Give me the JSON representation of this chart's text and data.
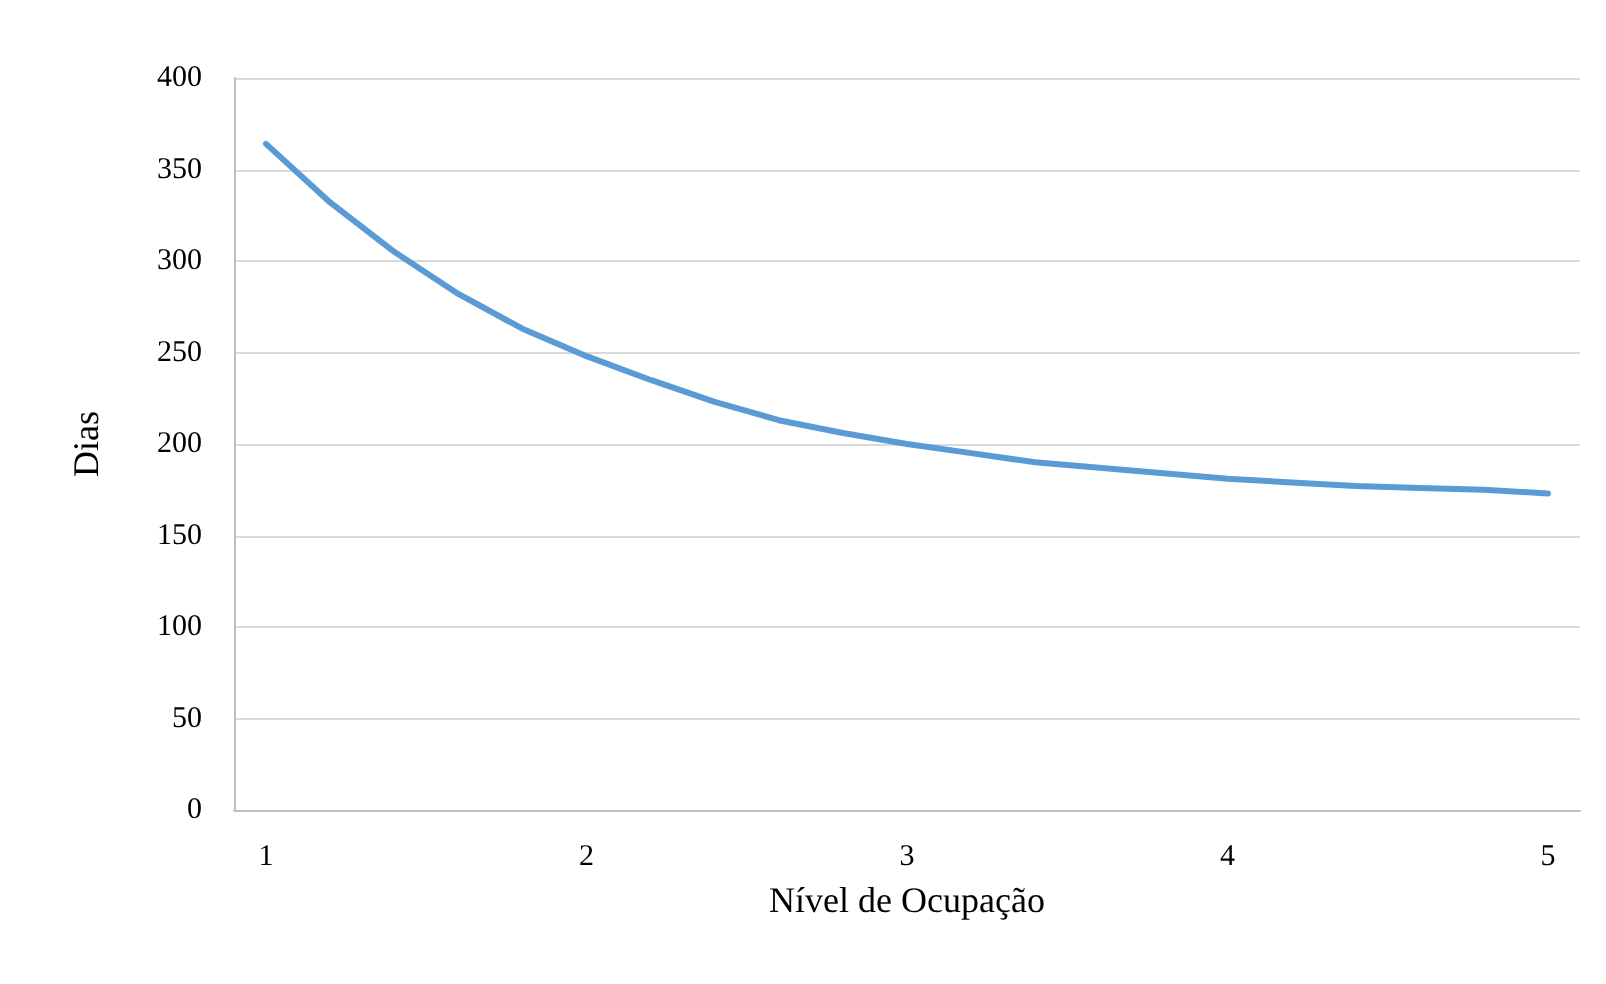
{
  "chart_data": {
    "type": "line",
    "xlabel": "Nível de Ocupação",
    "ylabel": "Dias",
    "x": [
      1,
      1.2,
      1.4,
      1.6,
      1.8,
      2,
      2.2,
      2.4,
      2.6,
      2.8,
      3,
      3.2,
      3.4,
      3.6,
      3.8,
      4,
      4.2,
      4.4,
      4.6,
      4.8,
      5
    ],
    "series": [
      {
        "color": "#5b9bd5",
        "values": [
          364,
          332,
          305,
          282,
          263,
          248,
          235,
          223,
          213,
          206,
          200,
          195,
          190,
          187,
          184,
          181,
          179,
          177,
          176,
          175,
          173
        ]
      }
    ],
    "xlim": [
      0.9,
      5.1
    ],
    "xticks": [
      1,
      2,
      3,
      4,
      5
    ],
    "ylim": [
      0,
      400
    ],
    "yticks": [
      0,
      50,
      100,
      150,
      200,
      250,
      300,
      350,
      400
    ],
    "grid": "y",
    "marker": "none",
    "line_style": "solid"
  }
}
